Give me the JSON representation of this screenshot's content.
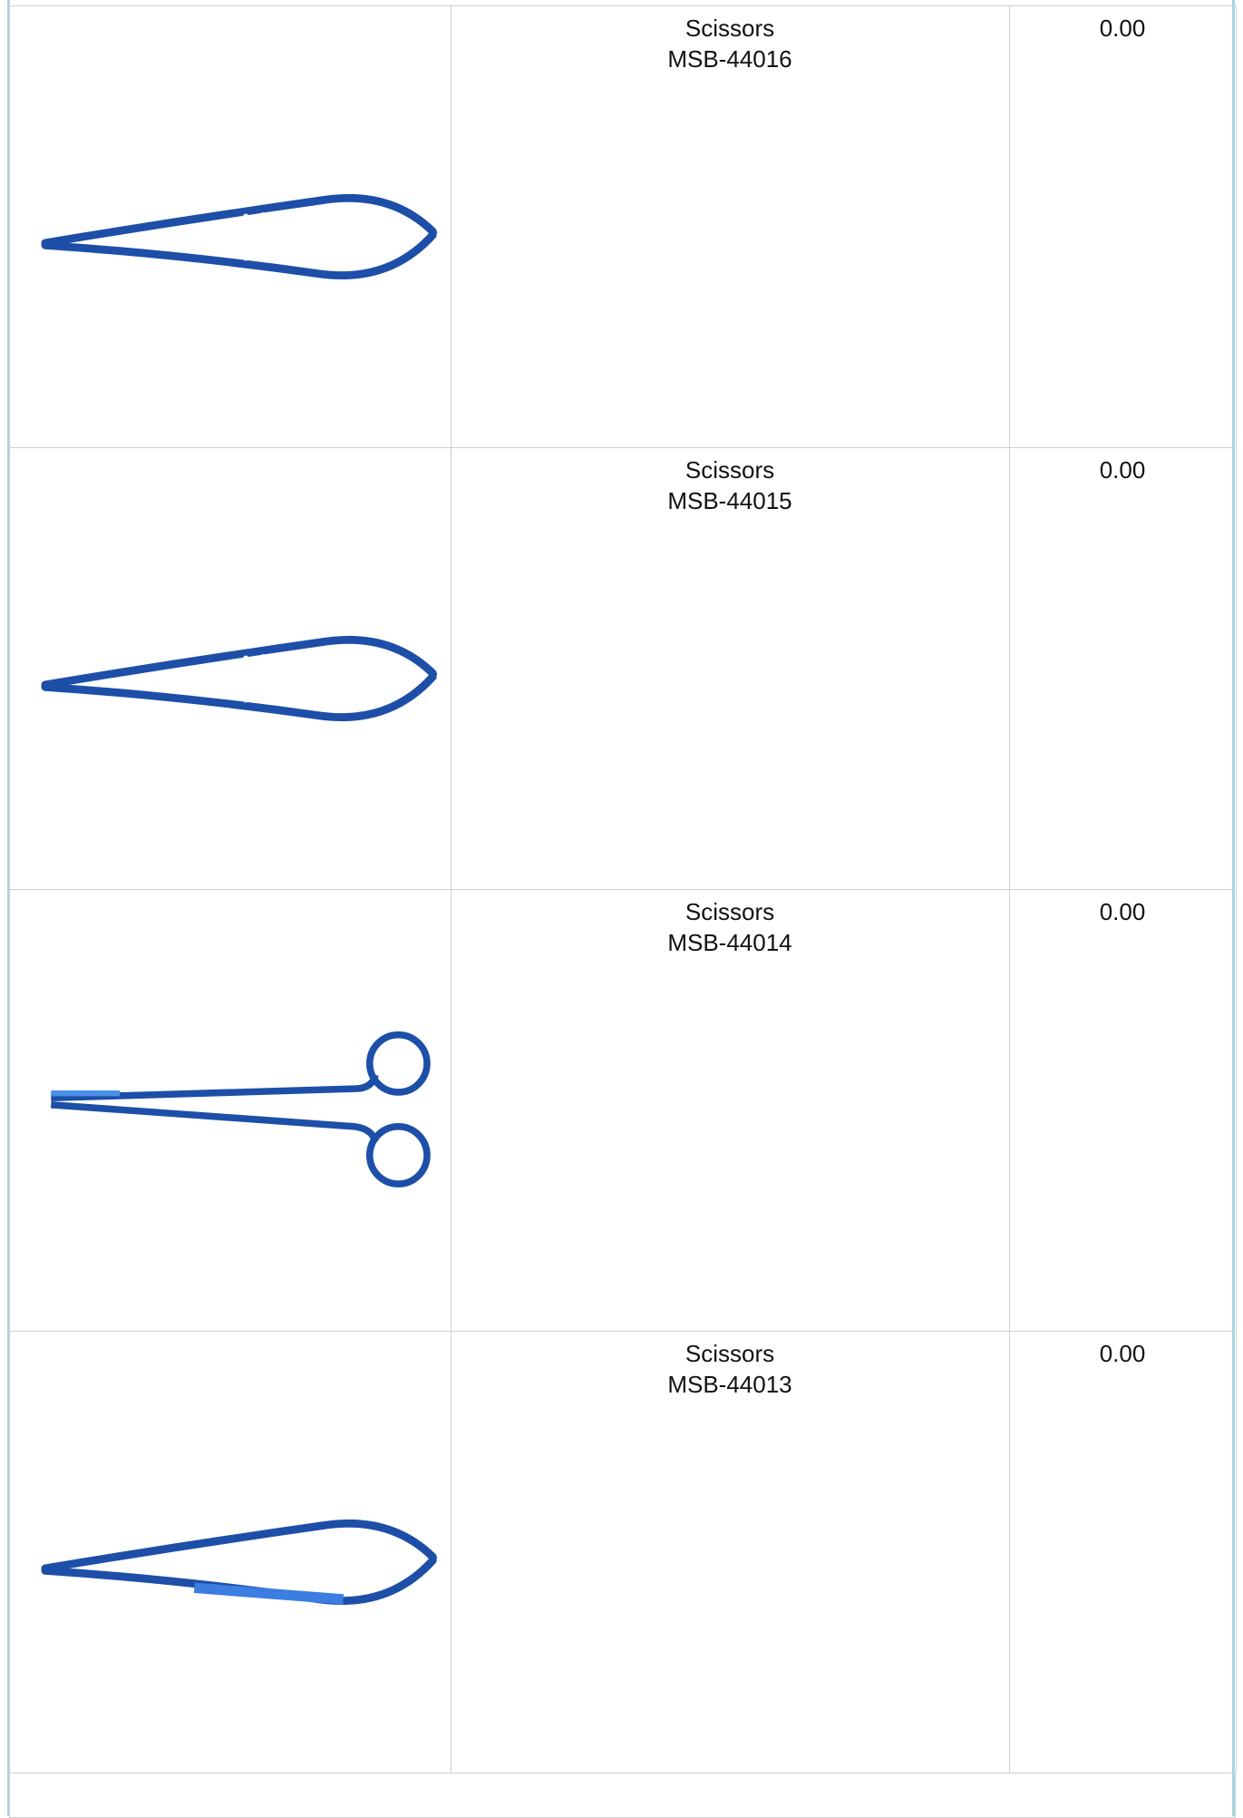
{
  "table": {
    "rows": [
      {
        "name": "Scissors",
        "code": "MSB-44016",
        "price": "0.00"
      },
      {
        "name": "Scissors",
        "code": "MSB-44015",
        "price": "0.00"
      },
      {
        "name": "Scissors",
        "code": "MSB-44014",
        "price": "0.00"
      },
      {
        "name": "Scissors",
        "code": "MSB-44013",
        "price": "0.00"
      }
    ]
  }
}
